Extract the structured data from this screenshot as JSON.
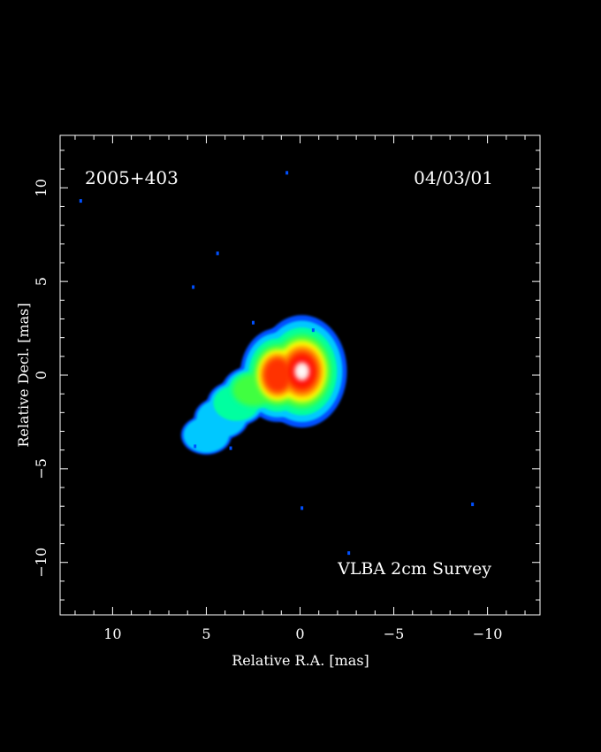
{
  "chart_data": {
    "type": "heatmap",
    "source_label": "2005+403",
    "date_label": "04/03/01",
    "survey_label": "VLBA 2cm Survey",
    "xlabel": "Relative R.A. [mas]",
    "ylabel": "Relative Decl. [mas]",
    "xlim": [
      12.8,
      -12.8
    ],
    "ylim": [
      -12.8,
      12.8
    ],
    "x_ticks": [
      {
        "value": 10,
        "label": "10"
      },
      {
        "value": 5,
        "label": "5"
      },
      {
        "value": 0,
        "label": "0"
      },
      {
        "value": -5,
        "label": "−5"
      },
      {
        "value": -10,
        "label": "−10"
      }
    ],
    "y_ticks": [
      {
        "value": 10,
        "label": "10"
      },
      {
        "value": 5,
        "label": "5"
      },
      {
        "value": 0,
        "label": "0"
      },
      {
        "value": -5,
        "label": "−5"
      },
      {
        "value": -10,
        "label": "−10"
      }
    ],
    "colormap": [
      "#0050ff",
      "#00c8ff",
      "#00ffa0",
      "#40ff40",
      "#ffff00",
      "#ff9000",
      "#ff3000",
      "#ff0000",
      "#ffd0d0",
      "#ffffff"
    ],
    "emission_components": [
      {
        "name": "core",
        "ra": -0.1,
        "dec": 0.2,
        "level": 1.0
      },
      {
        "name": "inner knot",
        "ra": 1.2,
        "dec": 0.0,
        "level": 0.7
      },
      {
        "name": "jet blob 1",
        "ra": 2.5,
        "dec": -0.8,
        "level": 0.35
      },
      {
        "name": "jet blob 2",
        "ra": 3.4,
        "dec": -1.5,
        "level": 0.28
      },
      {
        "name": "jet blob 3",
        "ra": 4.2,
        "dec": -2.3,
        "level": 0.22
      },
      {
        "name": "jet tip",
        "ra": 5.0,
        "dec": -3.2,
        "level": 0.15
      }
    ],
    "noise_speckles": [
      {
        "ra": 11.7,
        "dec": 9.3
      },
      {
        "ra": 0.7,
        "dec": 10.8
      },
      {
        "ra": 4.4,
        "dec": 6.5
      },
      {
        "ra": 5.7,
        "dec": 4.7
      },
      {
        "ra": 2.5,
        "dec": 2.8
      },
      {
        "ra": -0.7,
        "dec": 2.4
      },
      {
        "ra": 5.6,
        "dec": -3.8
      },
      {
        "ra": 3.7,
        "dec": -3.9
      },
      {
        "ra": -0.1,
        "dec": -7.1
      },
      {
        "ra": -2.6,
        "dec": -9.5
      },
      {
        "ra": -9.2,
        "dec": -6.9
      }
    ]
  }
}
